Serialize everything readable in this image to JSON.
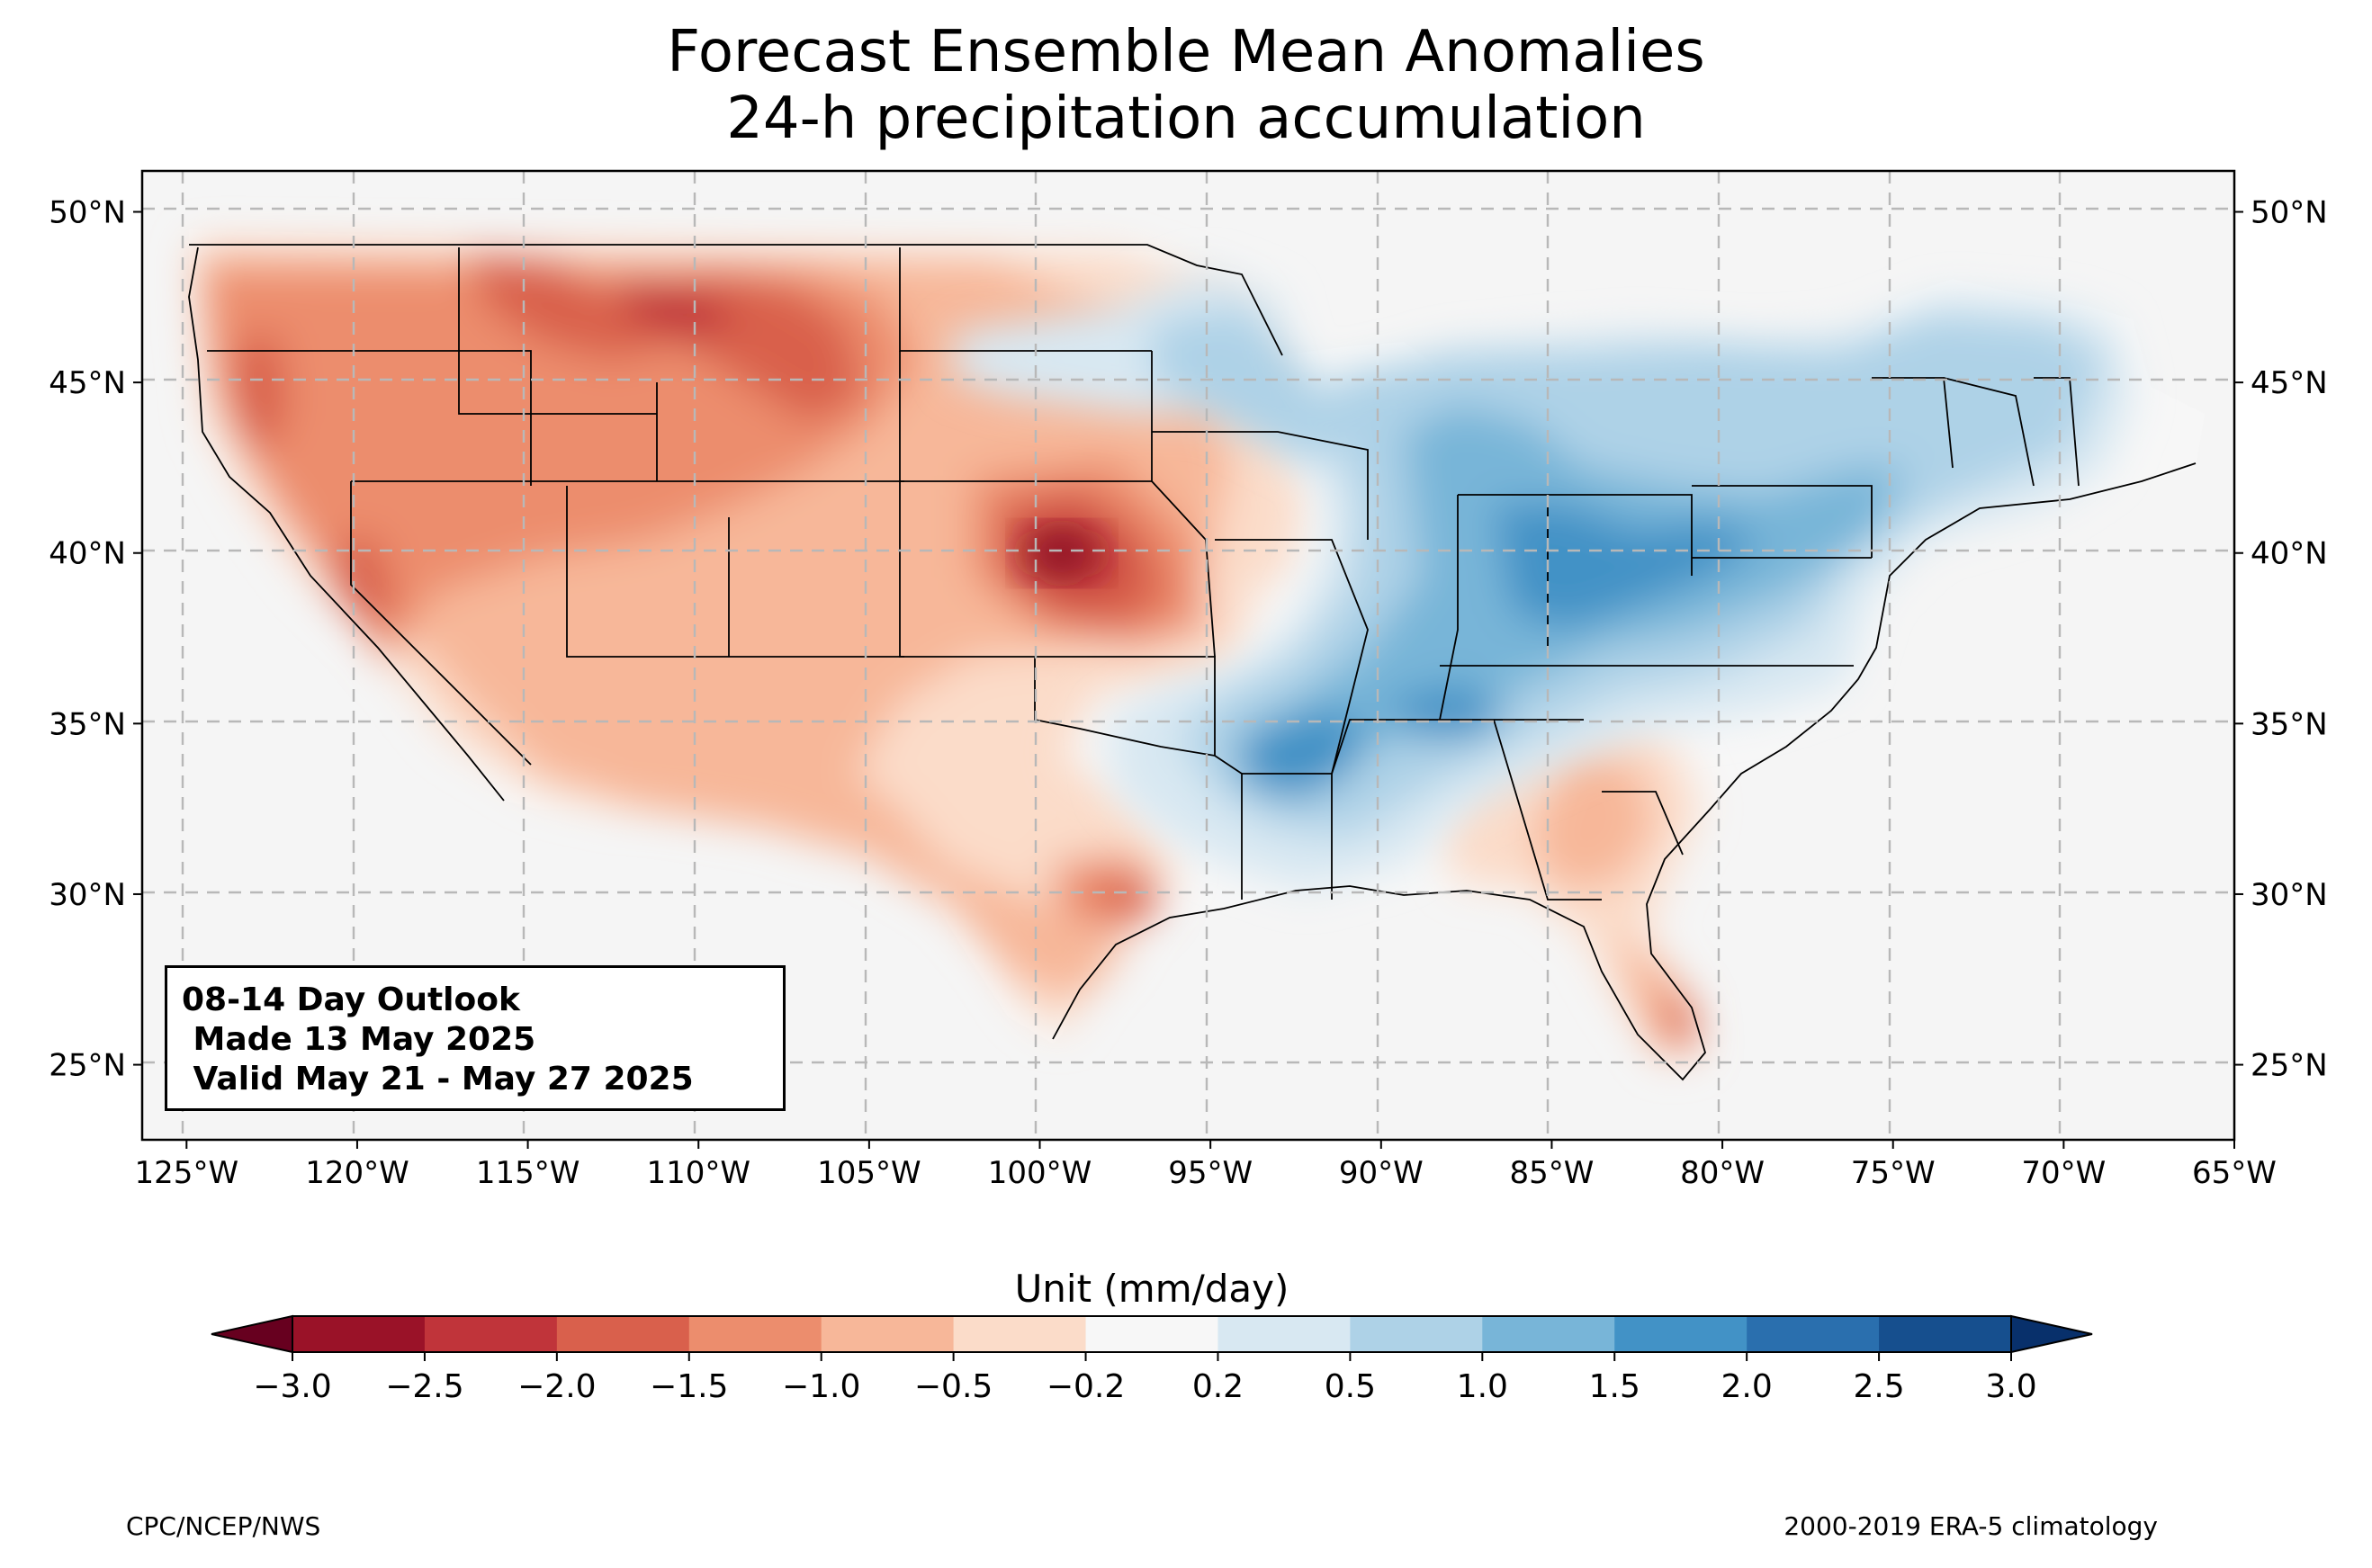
{
  "title": {
    "line1": "Forecast Ensemble Mean Anomalies",
    "line2": "24-h precipitation accumulation"
  },
  "outlook": {
    "line1": "08-14 Day Outlook",
    "line2": " Made 13 May 2025",
    "line3": " Valid May 21 - May 27 2025"
  },
  "axes": {
    "lon_ticks": [
      "125°W",
      "120°W",
      "115°W",
      "110°W",
      "105°W",
      "100°W",
      "95°W",
      "90°W",
      "85°W",
      "80°W",
      "75°W",
      "70°W",
      "65°W"
    ],
    "lat_ticks": [
      "50°N",
      "45°N",
      "40°N",
      "35°N",
      "30°N",
      "25°N"
    ],
    "lon_range": [
      -126.3,
      -65
    ],
    "lat_range": [
      22.8,
      51.2
    ]
  },
  "colorbar": {
    "label": "Unit (mm/day)",
    "ticks": [
      "−3.0",
      "−2.5",
      "−2.0",
      "−1.5",
      "−1.0",
      "−0.5",
      "−0.2",
      "0.2",
      "0.5",
      "1.0",
      "1.5",
      "2.0",
      "2.5",
      "3.0"
    ],
    "colors": [
      "#9a1228",
      "#c0343a",
      "#d9604c",
      "#ec8d6d",
      "#f7b799",
      "#fbdcc9",
      "#f7f7f7",
      "#d8e8f2",
      "#aed2e7",
      "#78b5d8",
      "#4292c6",
      "#2a6fae",
      "#164f8e"
    ],
    "under_color": "#67001f",
    "over_color": "#08306b"
  },
  "credits": {
    "left": "CPC/NCEP/NWS",
    "right": "2000-2019 ERA-5 climatology"
  }
}
